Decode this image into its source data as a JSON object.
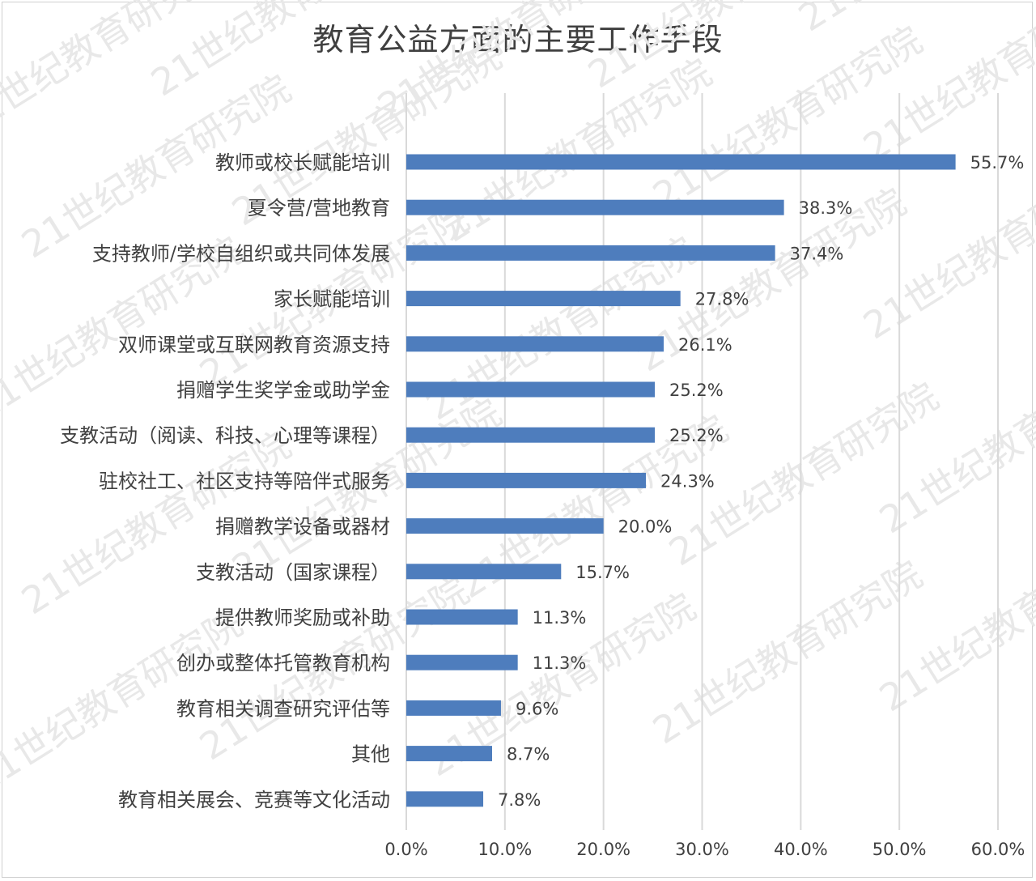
{
  "chart_data": {
    "type": "bar",
    "orientation": "horizontal",
    "title": "教育公益方面的主要工作手段",
    "categories": [
      "教师或校长赋能培训",
      "夏令营/营地教育",
      "支持教师/学校自组织或共同体发展",
      "家长赋能培训",
      "双师课堂或互联网教育资源支持",
      "捐赠学生奖学金或助学金",
      "支教活动（阅读、科技、心理等课程）",
      "驻校社工、社区支持等陪伴式服务",
      "捐赠教学设备或器材",
      "支教活动（国家课程）",
      "提供教师奖励或补助",
      "创办或整体托管教育机构",
      "教育相关调查研究评估等",
      "其他",
      "教育相关展会、竞赛等文化活动"
    ],
    "values": [
      55.7,
      38.3,
      37.4,
      27.8,
      26.1,
      25.2,
      25.2,
      24.3,
      20.0,
      15.7,
      11.3,
      11.3,
      9.6,
      8.7,
      7.8
    ],
    "value_labels": [
      "55.7%",
      "38.3%",
      "37.4%",
      "27.8%",
      "26.1%",
      "25.2%",
      "25.2%",
      "24.3%",
      "20.0%",
      "15.7%",
      "11.3%",
      "11.3%",
      "9.6%",
      "8.7%",
      "7.8%"
    ],
    "xlim": [
      0,
      60
    ],
    "xticks": [
      0,
      10,
      20,
      30,
      40,
      50,
      60
    ],
    "xtick_labels": [
      "0.0%",
      "10.0%",
      "20.0%",
      "30.0%",
      "40.0%",
      "50.0%",
      "60.0%"
    ],
    "grid": true,
    "legend": "none",
    "bar_color": "#4e7dbd",
    "grid_color": "#d9d9d9"
  },
  "watermark": "21世纪教育研究院"
}
